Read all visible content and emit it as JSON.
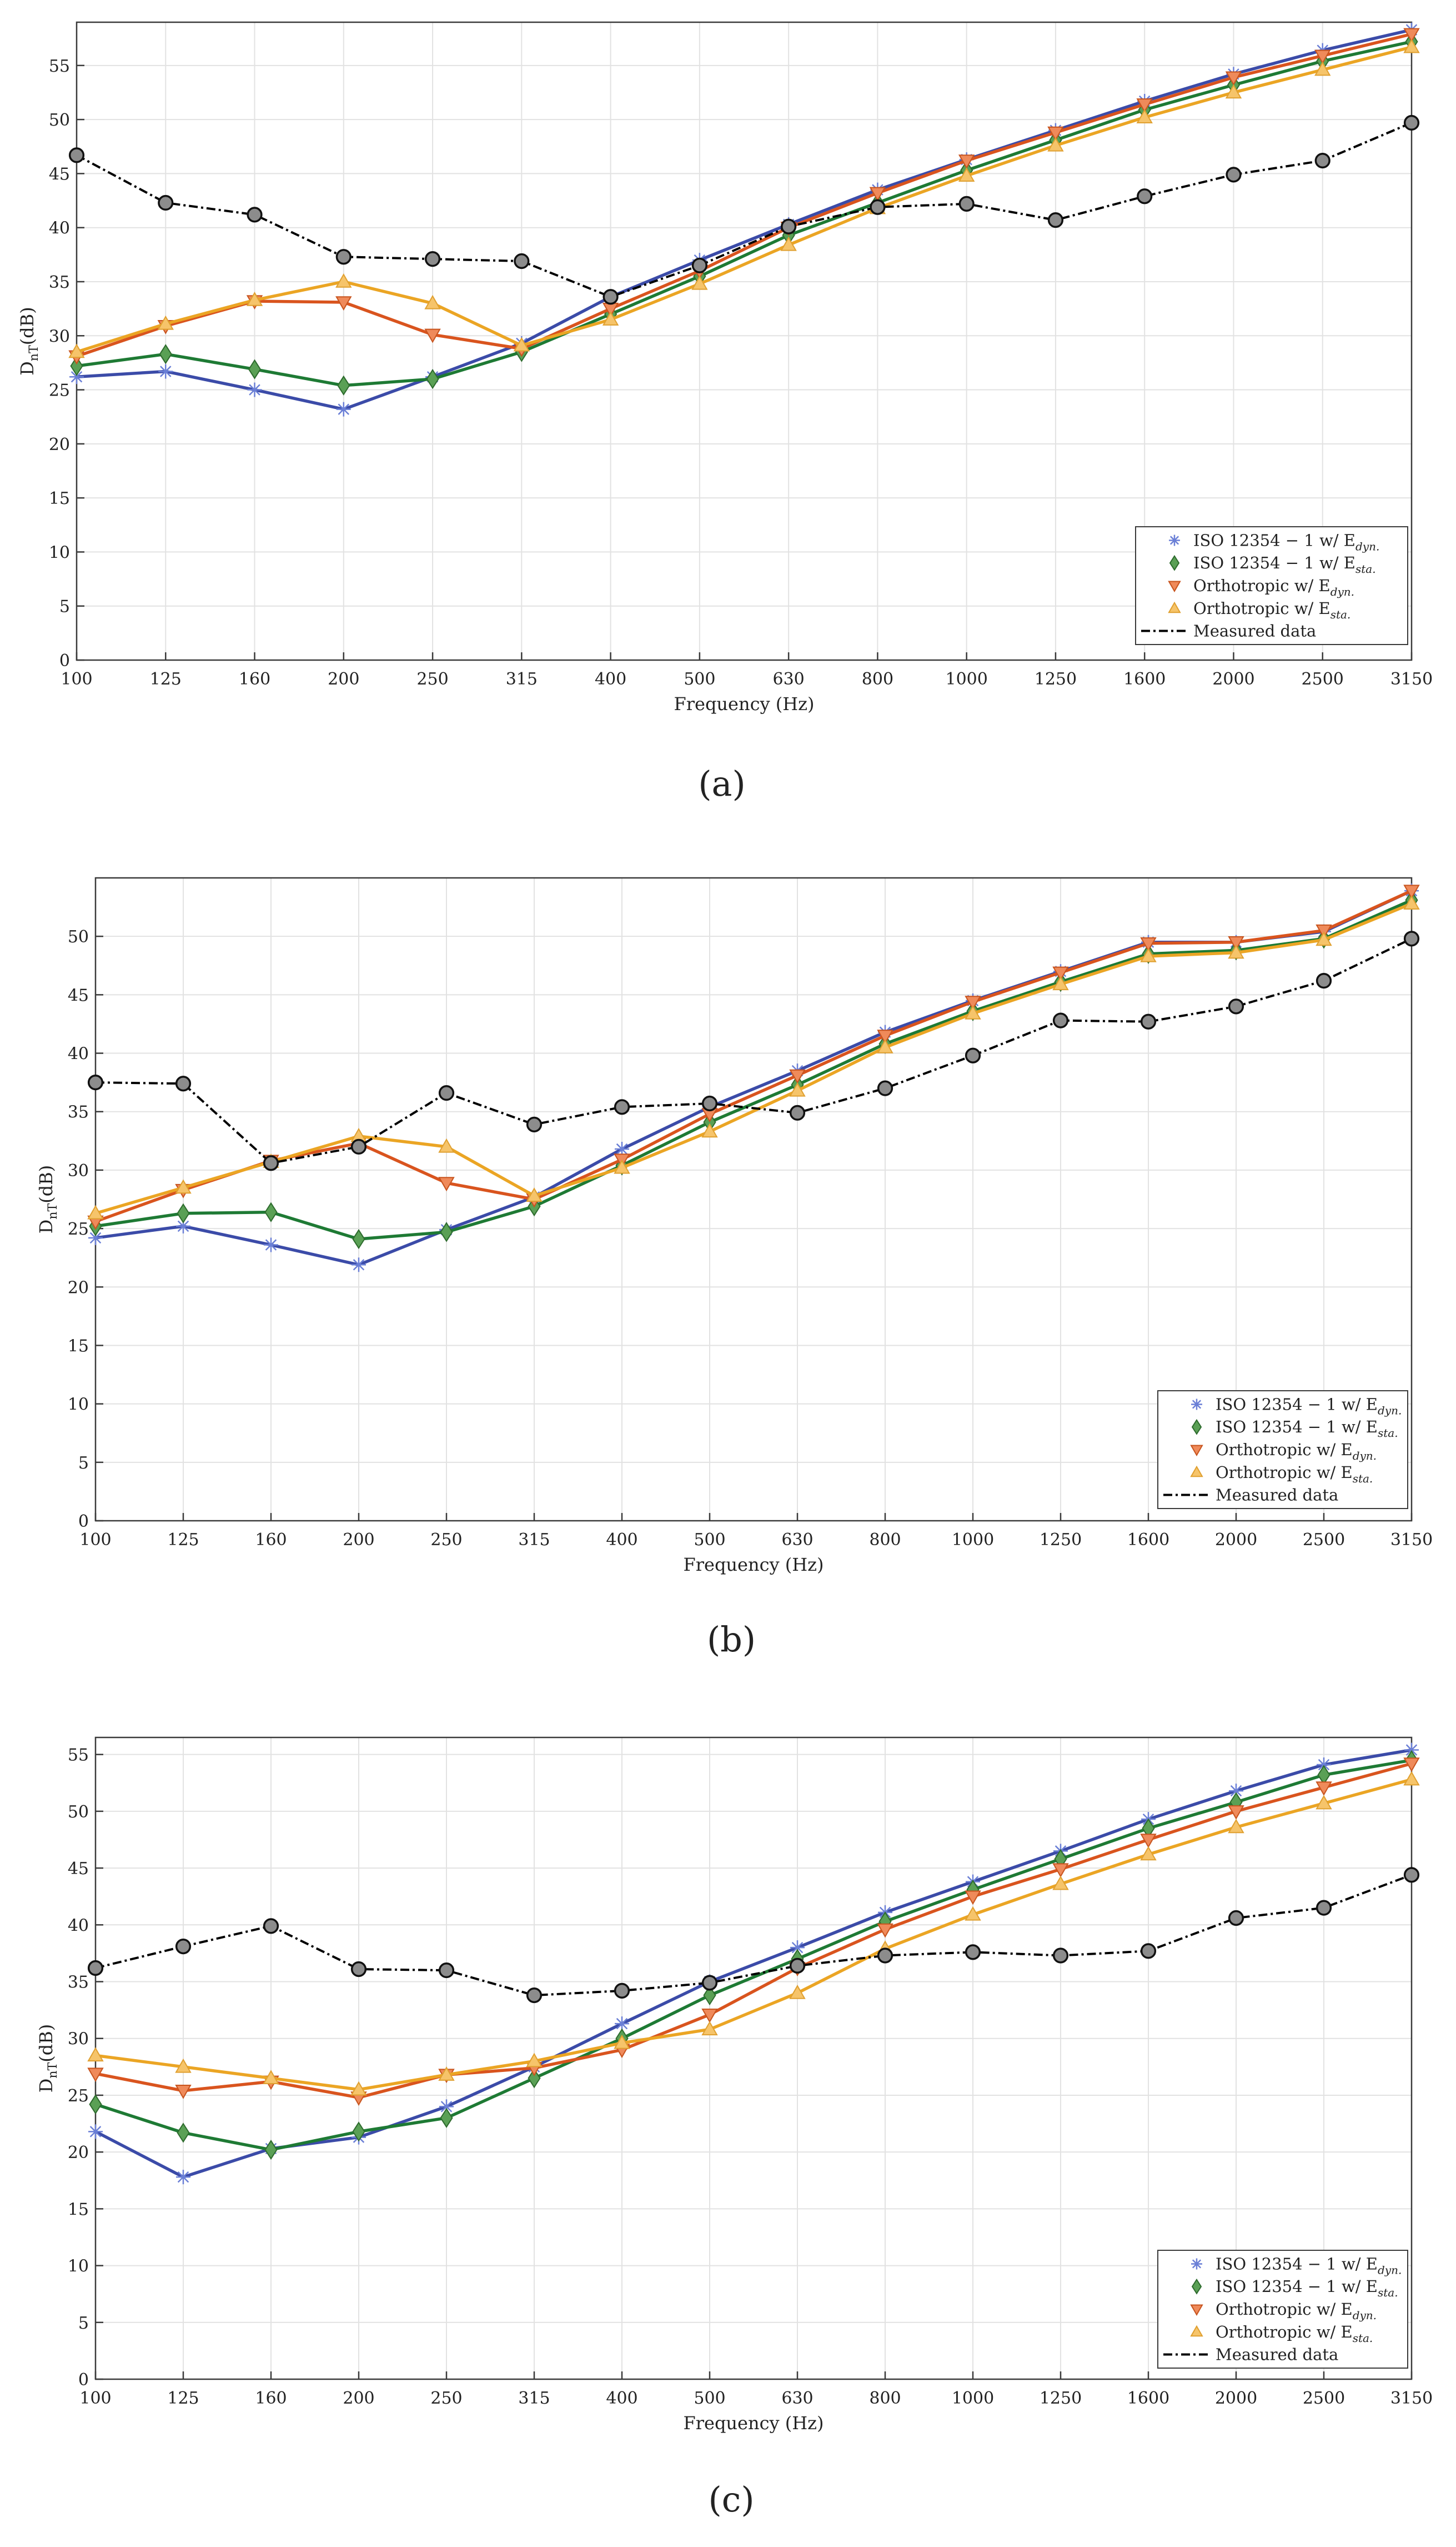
{
  "chart_data": [
    {
      "type": "line",
      "panel_label": "(a)",
      "xlabel": "Frequency (Hz)",
      "ylabel": "D",
      "ylabel_sub": "nT",
      "ylabel_unit": "(dB)",
      "categories": [
        "100",
        "125",
        "160",
        "200",
        "250",
        "315",
        "400",
        "500",
        "630",
        "800",
        "1000",
        "1250",
        "1600",
        "2000",
        "2500",
        "3150"
      ],
      "ylim": [
        0,
        59
      ],
      "yticks": [
        0,
        5,
        10,
        15,
        20,
        25,
        30,
        35,
        40,
        45,
        50,
        55
      ],
      "grid": true,
      "legend_position": "bottom-right",
      "series": [
        {
          "name": "ISO 12354 − 1 w/ E",
          "sub": "dyn.",
          "color": "#3b4ba8",
          "marker": "star",
          "values": [
            26.2,
            26.7,
            25.0,
            23.2,
            26.2,
            29.3,
            33.6,
            37.0,
            40.3,
            43.5,
            46.3,
            49.0,
            51.7,
            54.2,
            56.4,
            58.3
          ]
        },
        {
          "name": "ISO 12354 − 1 w/ E",
          "sub": "sta.",
          "color": "#1e7a34",
          "marker": "diamond",
          "values": [
            27.2,
            28.3,
            26.9,
            25.4,
            26.0,
            28.5,
            32.0,
            35.5,
            39.3,
            42.3,
            45.3,
            48.1,
            50.9,
            53.2,
            55.4,
            57.2
          ]
        },
        {
          "name": "Orthotropic w/ E",
          "sub": "dyn.",
          "color": "#d9541e",
          "marker": "tri-down",
          "values": [
            28.1,
            30.9,
            33.2,
            33.1,
            30.1,
            28.8,
            32.5,
            36.0,
            40.0,
            43.2,
            46.2,
            48.8,
            51.4,
            53.9,
            55.9,
            57.9
          ]
        },
        {
          "name": "Orthotropic w/ E",
          "sub": "sta.",
          "color": "#eba524",
          "marker": "tri-up",
          "values": [
            28.5,
            31.1,
            33.3,
            35.0,
            33.0,
            29.1,
            31.5,
            34.8,
            38.4,
            41.8,
            44.8,
            47.6,
            50.2,
            52.5,
            54.6,
            56.7
          ]
        },
        {
          "name": "Measured data",
          "sub": "",
          "color": "#000000",
          "marker": "circle",
          "dashed": true,
          "values": [
            46.7,
            42.3,
            41.2,
            37.3,
            37.1,
            36.9,
            33.6,
            36.5,
            40.1,
            41.9,
            42.2,
            40.7,
            42.9,
            44.9,
            46.2,
            49.7
          ]
        }
      ]
    },
    {
      "type": "line",
      "panel_label": "(b)",
      "xlabel": "Frequency (Hz)",
      "ylabel": "D",
      "ylabel_sub": "nT",
      "ylabel_unit": "(dB)",
      "categories": [
        "100",
        "125",
        "160",
        "200",
        "250",
        "315",
        "400",
        "500",
        "630",
        "800",
        "1000",
        "1250",
        "1600",
        "2000",
        "2500",
        "3150"
      ],
      "ylim": [
        0,
        55
      ],
      "yticks": [
        0,
        5,
        10,
        15,
        20,
        25,
        30,
        35,
        40,
        45,
        50
      ],
      "grid": true,
      "legend_position": "bottom-right",
      "series": [
        {
          "name": "ISO 12354 − 1 w/ E",
          "sub": "dyn.",
          "color": "#3b4ba8",
          "marker": "star",
          "values": [
            24.2,
            25.2,
            23.6,
            21.9,
            24.9,
            27.7,
            31.8,
            35.4,
            38.5,
            41.8,
            44.5,
            47.0,
            49.5,
            49.5,
            50.4,
            53.9
          ]
        },
        {
          "name": "ISO 12354 − 1 w/ E",
          "sub": "sta.",
          "color": "#1e7a34",
          "marker": "diamond",
          "values": [
            25.2,
            26.3,
            26.4,
            24.1,
            24.7,
            26.9,
            30.4,
            34.1,
            37.3,
            40.8,
            43.6,
            46.1,
            48.5,
            48.8,
            49.8,
            53.1
          ]
        },
        {
          "name": "Orthotropic w/ E",
          "sub": "dyn.",
          "color": "#d9541e",
          "marker": "tri-down",
          "values": [
            25.6,
            28.3,
            30.8,
            32.3,
            28.9,
            27.5,
            30.9,
            34.8,
            38.1,
            41.5,
            44.4,
            46.9,
            49.4,
            49.5,
            50.5,
            53.9
          ]
        },
        {
          "name": "Orthotropic w/ E",
          "sub": "sta.",
          "color": "#eba524",
          "marker": "tri-up",
          "values": [
            26.3,
            28.5,
            30.7,
            32.9,
            32.0,
            27.8,
            30.2,
            33.3,
            36.8,
            40.5,
            43.4,
            45.9,
            48.3,
            48.6,
            49.7,
            52.8
          ]
        },
        {
          "name": "Measured data",
          "sub": "",
          "color": "#000000",
          "marker": "circle",
          "dashed": true,
          "values": [
            37.5,
            37.4,
            30.6,
            32.0,
            36.6,
            33.9,
            35.4,
            35.7,
            34.9,
            37.0,
            39.8,
            42.8,
            42.7,
            44.0,
            46.2,
            49.8
          ]
        }
      ]
    },
    {
      "type": "line",
      "panel_label": "(c)",
      "xlabel": "Frequency (Hz)",
      "ylabel": "D",
      "ylabel_sub": "nT",
      "ylabel_unit": "(dB)",
      "categories": [
        "100",
        "125",
        "160",
        "200",
        "250",
        "315",
        "400",
        "500",
        "630",
        "800",
        "1000",
        "1250",
        "1600",
        "2000",
        "2500",
        "3150"
      ],
      "ylim": [
        0,
        56.5
      ],
      "yticks": [
        0,
        5,
        10,
        15,
        20,
        25,
        30,
        35,
        40,
        45,
        50,
        55
      ],
      "grid": true,
      "legend_position": "bottom-right",
      "series": [
        {
          "name": "ISO 12354 − 1 w/ E",
          "sub": "dyn.",
          "color": "#3b4ba8",
          "marker": "star",
          "values": [
            21.8,
            17.8,
            20.3,
            21.3,
            24.0,
            27.5,
            31.3,
            35.0,
            38.0,
            41.1,
            43.8,
            46.5,
            49.3,
            51.8,
            54.1,
            55.4
          ]
        },
        {
          "name": "ISO 12354 − 1 w/ E",
          "sub": "sta.",
          "color": "#1e7a34",
          "marker": "diamond",
          "values": [
            24.2,
            21.7,
            20.2,
            21.8,
            23.0,
            26.5,
            30.0,
            33.8,
            37.0,
            40.3,
            43.1,
            45.8,
            48.5,
            50.8,
            53.2,
            54.5
          ]
        },
        {
          "name": "Orthotropic w/ E",
          "sub": "dyn.",
          "color": "#d9541e",
          "marker": "tri-down",
          "values": [
            26.9,
            25.4,
            26.2,
            24.8,
            26.8,
            27.4,
            29.0,
            32.1,
            36.2,
            39.6,
            42.5,
            44.9,
            47.5,
            50.0,
            52.1,
            54.2
          ]
        },
        {
          "name": "Orthotropic w/ E",
          "sub": "sta.",
          "color": "#eba524",
          "marker": "tri-up",
          "values": [
            28.5,
            27.5,
            26.5,
            25.5,
            26.8,
            28.0,
            29.6,
            30.8,
            34.0,
            37.9,
            40.9,
            43.6,
            46.2,
            48.6,
            50.7,
            52.8
          ]
        },
        {
          "name": "Measured data",
          "sub": "",
          "color": "#000000",
          "marker": "circle",
          "dashed": true,
          "values": [
            36.2,
            38.1,
            39.9,
            36.1,
            36.0,
            33.8,
            34.2,
            34.9,
            36.4,
            37.3,
            37.6,
            37.3,
            37.7,
            40.6,
            41.5,
            44.4
          ]
        }
      ]
    }
  ]
}
